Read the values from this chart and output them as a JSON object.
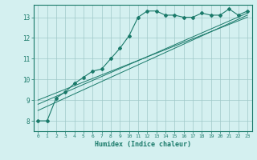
{
  "xlabel": "Humidex (Indice chaleur)",
  "ylabel": "",
  "bg_color": "#d4f0f0",
  "line_color": "#1a7a6a",
  "grid_color": "#a0c8c8",
  "xlim": [
    -0.5,
    23.5
  ],
  "ylim": [
    7.5,
    13.6
  ],
  "xticks": [
    0,
    1,
    2,
    3,
    4,
    5,
    6,
    7,
    8,
    9,
    10,
    11,
    12,
    13,
    14,
    15,
    16,
    17,
    18,
    19,
    20,
    21,
    22,
    23
  ],
  "yticks": [
    8,
    9,
    10,
    11,
    12,
    13
  ],
  "line1_x": [
    0,
    1,
    2,
    3,
    4,
    5,
    6,
    7,
    8,
    9,
    10,
    11,
    12,
    13,
    14,
    15,
    16,
    17,
    18,
    19,
    20,
    21,
    22,
    23
  ],
  "line1_y": [
    8.0,
    8.0,
    9.1,
    9.4,
    9.8,
    10.1,
    10.4,
    10.5,
    11.0,
    11.5,
    12.1,
    13.0,
    13.3,
    13.3,
    13.1,
    13.1,
    13.0,
    13.0,
    13.2,
    13.1,
    13.1,
    13.4,
    13.1,
    13.3
  ],
  "line2_x": [
    0,
    23
  ],
  "line2_y": [
    8.5,
    13.1
  ],
  "line3_x": [
    0,
    23
  ],
  "line3_y": [
    8.8,
    13.2
  ],
  "line4_x": [
    0,
    23
  ],
  "line4_y": [
    9.0,
    13.0
  ]
}
